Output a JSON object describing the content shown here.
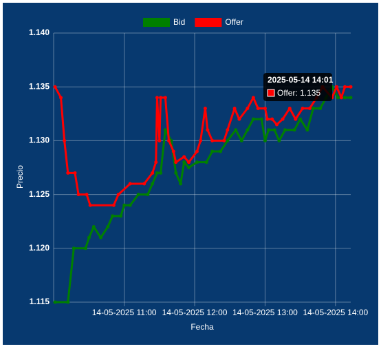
{
  "chart_data": {
    "type": "line",
    "x_label": "Fecha",
    "y_label": "Precio",
    "legend": "top",
    "grid": true,
    "xlim": [
      "2025-05-14 10:01",
      "2025-05-14 14:13"
    ],
    "xticks": [
      {
        "value": "2025-05-14 11:00",
        "label": "14-05-2025 11:00"
      },
      {
        "value": "2025-05-14 12:00",
        "label": "14-05-2025 12:00"
      },
      {
        "value": "2025-05-14 13:00",
        "label": "14-05-2025 13:00"
      },
      {
        "value": "2025-05-14 14:00",
        "label": "14-05-2025 14:00"
      }
    ],
    "ylim": [
      1.115,
      1.14
    ],
    "yticks": [
      {
        "value": 1.115,
        "label": "1.115"
      },
      {
        "value": 1.12,
        "label": "1.120"
      },
      {
        "value": 1.125,
        "label": "1.125"
      },
      {
        "value": 1.13,
        "label": "1.130"
      },
      {
        "value": 1.135,
        "label": "1.135"
      },
      {
        "value": 1.14,
        "label": "1.140"
      }
    ],
    "series": [
      {
        "name": "Bid",
        "color": "#008000",
        "x": [
          "2025-05-14 10:01",
          "2025-05-14 10:12",
          "2025-05-14 10:17",
          "2025-05-14 10:27",
          "2025-05-14 10:30",
          "2025-05-14 10:34",
          "2025-05-14 10:40",
          "2025-05-14 10:46",
          "2025-05-14 10:50",
          "2025-05-14 10:57",
          "2025-05-14 11:00",
          "2025-05-14 11:05",
          "2025-05-14 11:12",
          "2025-05-14 11:20",
          "2025-05-14 11:24",
          "2025-05-14 11:28",
          "2025-05-14 11:31",
          "2025-05-14 11:35",
          "2025-05-14 11:40",
          "2025-05-14 11:44",
          "2025-05-14 11:48",
          "2025-05-14 11:51",
          "2025-05-14 11:55",
          "2025-05-14 12:02",
          "2025-05-14 12:10",
          "2025-05-14 12:15",
          "2025-05-14 12:22",
          "2025-05-14 12:28",
          "2025-05-14 12:35",
          "2025-05-14 12:40",
          "2025-05-14 12:45",
          "2025-05-14 12:50",
          "2025-05-14 12:57",
          "2025-05-14 13:00",
          "2025-05-14 13:03",
          "2025-05-14 13:08",
          "2025-05-14 13:12",
          "2025-05-14 13:17",
          "2025-05-14 13:25",
          "2025-05-14 13:30",
          "2025-05-14 13:36",
          "2025-05-14 13:41",
          "2025-05-14 13:47",
          "2025-05-14 13:52",
          "2025-05-14 13:57",
          "2025-05-14 14:02",
          "2025-05-14 14:08",
          "2025-05-14 14:13"
        ],
        "values": [
          1.115,
          1.115,
          1.12,
          1.12,
          1.121,
          1.122,
          1.121,
          1.122,
          1.123,
          1.123,
          1.124,
          1.124,
          1.125,
          1.125,
          1.126,
          1.127,
          1.127,
          1.131,
          1.13,
          1.127,
          1.126,
          1.128,
          1.1275,
          1.128,
          1.128,
          1.129,
          1.129,
          1.13,
          1.131,
          1.13,
          1.131,
          1.132,
          1.132,
          1.13,
          1.131,
          1.131,
          1.13,
          1.131,
          1.131,
          1.132,
          1.131,
          1.133,
          1.133,
          1.134,
          1.135,
          1.134,
          1.134,
          1.134
        ]
      },
      {
        "name": "Offer",
        "color": "#ff0000",
        "x": [
          "2025-05-14 10:01",
          "2025-05-14 10:06",
          "2025-05-14 10:09",
          "2025-05-14 10:12",
          "2025-05-14 10:18",
          "2025-05-14 10:21",
          "2025-05-14 10:28",
          "2025-05-14 10:31",
          "2025-05-14 10:51",
          "2025-05-14 10:55",
          "2025-05-14 11:05",
          "2025-05-14 11:17",
          "2025-05-14 11:24",
          "2025-05-14 11:27",
          "2025-05-14 11:28",
          "2025-05-14 11:30",
          "2025-05-14 11:31",
          "2025-05-14 11:35",
          "2025-05-14 11:38",
          "2025-05-14 11:42",
          "2025-05-14 11:44",
          "2025-05-14 11:51",
          "2025-05-14 11:55",
          "2025-05-14 12:02",
          "2025-05-14 12:05",
          "2025-05-14 12:09",
          "2025-05-14 12:11",
          "2025-05-14 12:15",
          "2025-05-14 12:25",
          "2025-05-14 12:28",
          "2025-05-14 12:34",
          "2025-05-14 12:38",
          "2025-05-14 12:45",
          "2025-05-14 12:50",
          "2025-05-14 12:54",
          "2025-05-14 13:00",
          "2025-05-14 13:02",
          "2025-05-14 13:06",
          "2025-05-14 13:10",
          "2025-05-14 13:15",
          "2025-05-14 13:21",
          "2025-05-14 13:26",
          "2025-05-14 13:32",
          "2025-05-14 13:38",
          "2025-05-14 13:44",
          "2025-05-14 13:49",
          "2025-05-14 13:57",
          "2025-05-14 14:01",
          "2025-05-14 14:05",
          "2025-05-14 14:08",
          "2025-05-14 14:13"
        ],
        "values": [
          1.135,
          1.134,
          1.13,
          1.127,
          1.127,
          1.125,
          1.125,
          1.124,
          1.124,
          1.125,
          1.126,
          1.126,
          1.127,
          1.128,
          1.134,
          1.13,
          1.134,
          1.134,
          1.13,
          1.129,
          1.128,
          1.1285,
          1.128,
          1.129,
          1.13,
          1.133,
          1.131,
          1.13,
          1.13,
          1.131,
          1.133,
          1.132,
          1.133,
          1.134,
          1.133,
          1.133,
          1.132,
          1.132,
          1.1315,
          1.132,
          1.133,
          1.132,
          1.133,
          1.133,
          1.134,
          1.135,
          1.134,
          1.135,
          1.134,
          1.135,
          1.135
        ]
      }
    ],
    "tooltip": {
      "title": "2025-05-14 14:01",
      "text": "Offer: 1.135"
    }
  }
}
